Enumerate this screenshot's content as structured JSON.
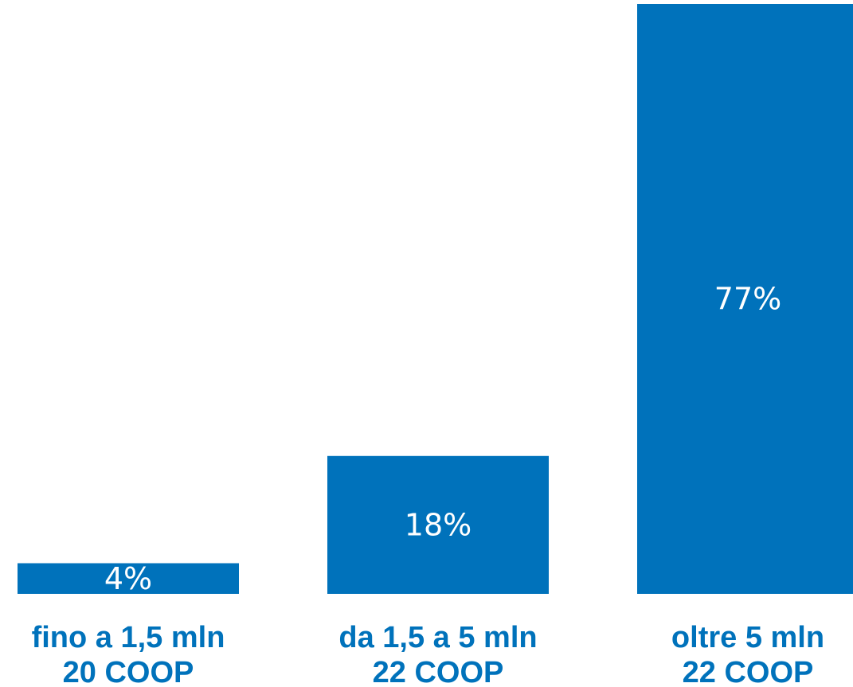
{
  "chart_data": {
    "type": "bar",
    "categories": [
      {
        "line1": "fino a 1,5 mln",
        "line2": "20 COOP"
      },
      {
        "line1": "da 1,5 a 5 mln",
        "line2": "22 COOP"
      },
      {
        "line1": "oltre 5 mln",
        "line2": "22 COOP"
      }
    ],
    "values": [
      4,
      18,
      77
    ],
    "value_labels": [
      "4%",
      "18%",
      "77%"
    ],
    "unit": "%",
    "ylim": [
      0,
      77
    ],
    "grid": false,
    "legend": "none",
    "colors": {
      "bar": "#0072bb",
      "label": "#0072bb",
      "value_text": "#ffffff"
    }
  }
}
